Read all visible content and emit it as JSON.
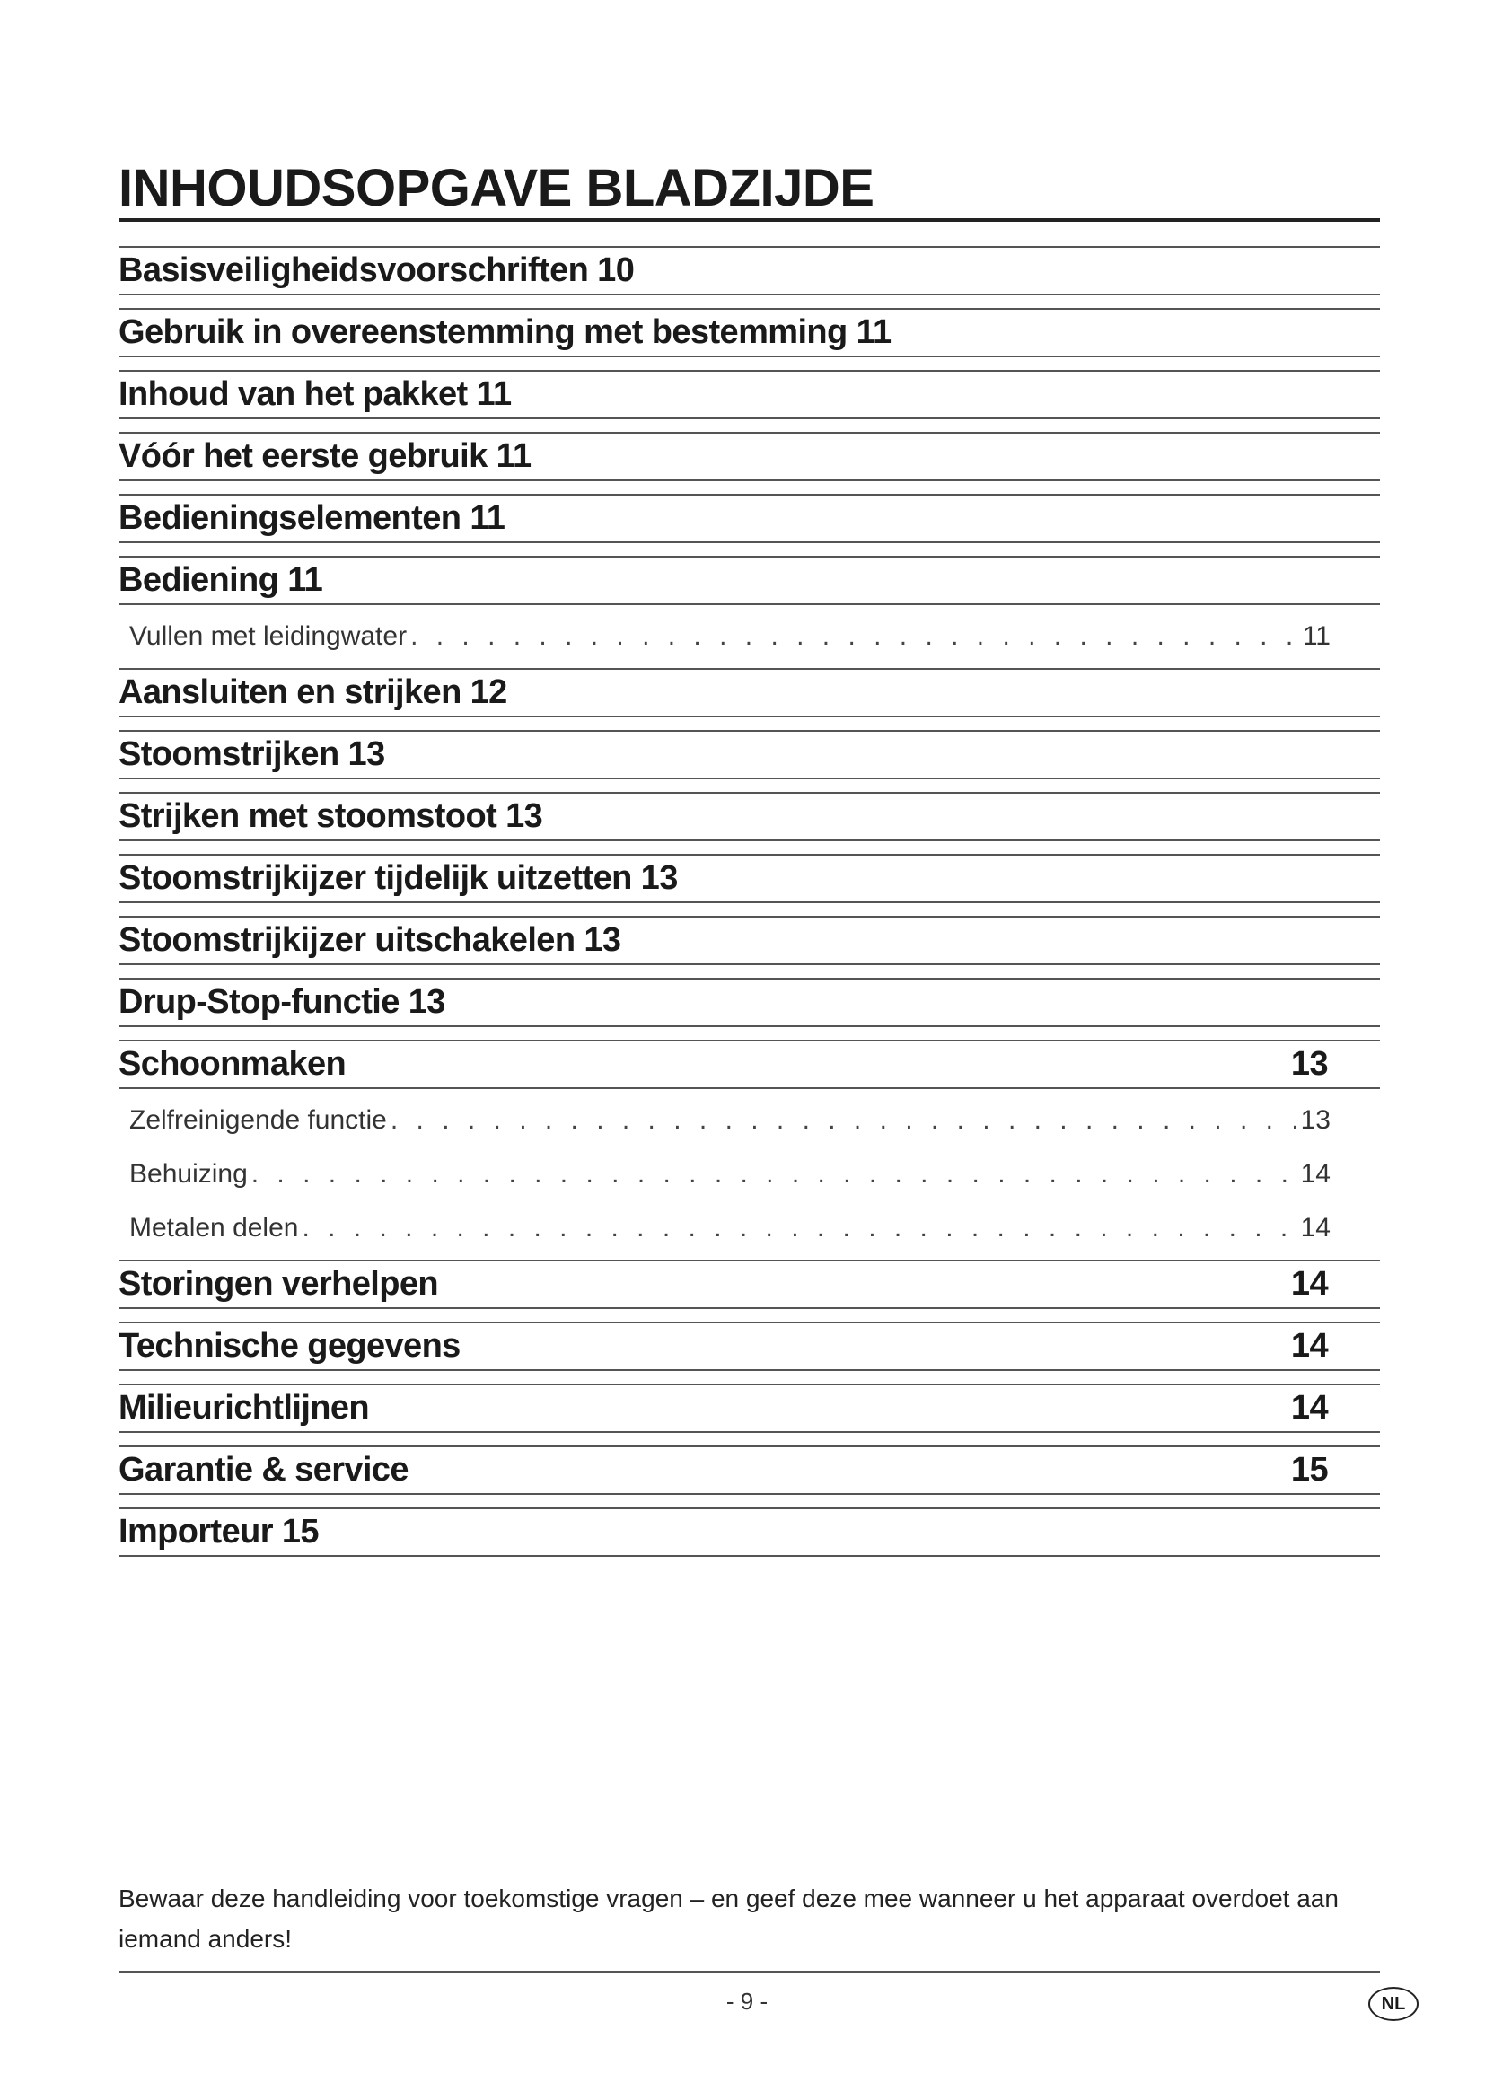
{
  "title": "INHOUDSOPGAVE BLADZIJDE",
  "toc": [
    {
      "label": "Basisveiligheidsvoorschriften 10",
      "page": ""
    },
    {
      "label": "Gebruik in overeenstemming met bestemming 11",
      "page": ""
    },
    {
      "label": "Inhoud van het pakket 11",
      "page": ""
    },
    {
      "label": "Vóór het eerste gebruik 11",
      "page": ""
    },
    {
      "label": "Bedieningselementen 11",
      "page": ""
    },
    {
      "label": "Bediening 11",
      "page": "",
      "subs": [
        {
          "label": "Vullen met leidingwater",
          "page": "11"
        }
      ]
    },
    {
      "label": "Aansluiten en strijken 12",
      "page": ""
    },
    {
      "label": "Stoomstrijken 13",
      "page": ""
    },
    {
      "label": "Strijken met stoomstoot 13",
      "page": ""
    },
    {
      "label": "Stoomstrijkijzer tijdelijk uitzetten 13",
      "page": ""
    },
    {
      "label": "Stoomstrijkijzer uitschakelen 13",
      "page": ""
    },
    {
      "label": "Drup-Stop-functie 13",
      "page": ""
    },
    {
      "label": "Schoonmaken",
      "page": "13",
      "subs": [
        {
          "label": "Zelfreinigende functie",
          "page": "13"
        },
        {
          "label": "Behuizing",
          "page": "14"
        },
        {
          "label": "Metalen delen",
          "page": "14"
        }
      ]
    },
    {
      "label": "Storingen verhelpen",
      "page": "14"
    },
    {
      "label": "Technische gegevens",
      "page": "14"
    },
    {
      "label": "Milieurichtlijnen",
      "page": "14"
    },
    {
      "label": "Garantie & service",
      "page": "15"
    },
    {
      "label": "Importeur 15",
      "page": ""
    }
  ],
  "footer": {
    "note": "Bewaar deze handleiding voor toekomstige vragen – en geef deze mee wanneer u het apparaat overdoet aan iemand anders!",
    "page_number": "- 9 -",
    "language_badge": "NL"
  }
}
